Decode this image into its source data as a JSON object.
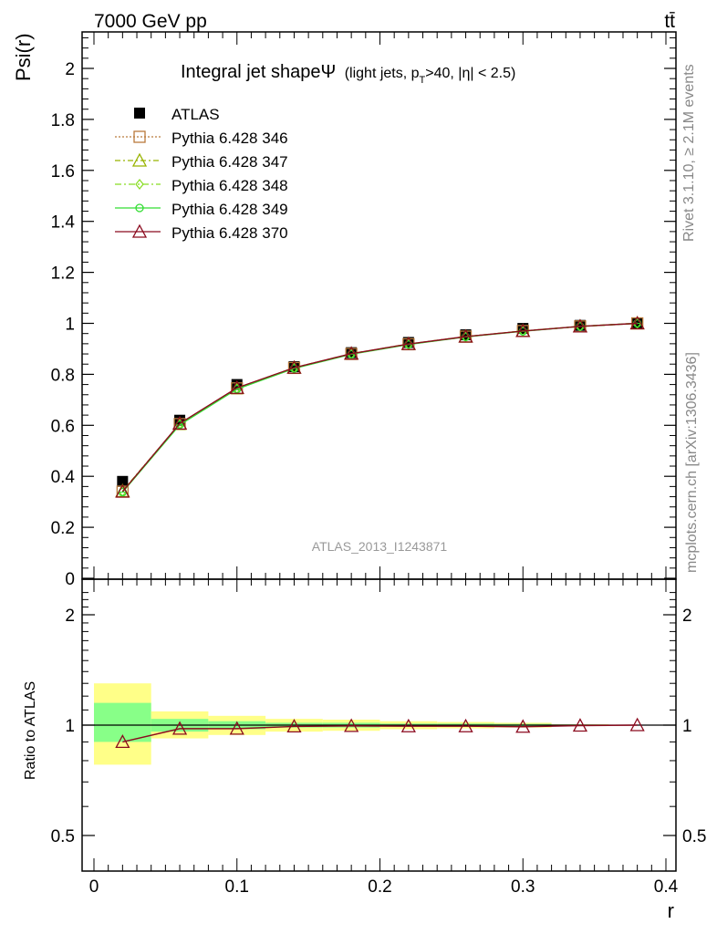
{
  "header": {
    "energy_label": "7000 GeV pp",
    "process_label": "tt̄",
    "side_label_top": "Rivet 3.1.10, ≥ 2.1M events",
    "side_label_bottom": "mcplots.cern.ch [arXiv:1306.3436]",
    "analysis_label": "ATLAS_2013_I1243871"
  },
  "chart_data": [
    {
      "type": "line",
      "title": "Integral jet shapeΨ",
      "title_suffix": "(light jets, p",
      "title_sub": "T",
      "title_tail": ">40, |η| < 2.5)",
      "xlabel": "",
      "ylabel": "Psi(r)",
      "xlim": [
        0.0,
        0.4
      ],
      "ylim": [
        0.0,
        2.15
      ],
      "yticks": [
        0,
        0.2,
        0.4,
        0.6,
        0.8,
        1,
        1.2,
        1.4,
        1.6,
        1.8,
        2
      ],
      "ytick_labels": [
        "0",
        "0.2",
        "0.4",
        "0.6",
        "0.8",
        "1",
        "1.2",
        "1.4",
        "1.6",
        "1.8",
        "2"
      ],
      "x": [
        0.02,
        0.06,
        0.1,
        0.14,
        0.18,
        0.22,
        0.26,
        0.3,
        0.34,
        0.38
      ],
      "data": {
        "name": "ATLAS",
        "values": [
          0.38,
          0.62,
          0.76,
          0.83,
          0.885,
          0.925,
          0.955,
          0.98,
          0.992,
          1.0
        ]
      },
      "series": [
        {
          "name": "Pythia 6.428 346",
          "color": "#b97a3c",
          "dash": "2,2",
          "marker": "square",
          "values": [
            0.34,
            0.605,
            0.745,
            0.825,
            0.88,
            0.918,
            0.948,
            0.97,
            0.988,
            1.0
          ]
        },
        {
          "name": "Pythia 6.428 347",
          "color": "#99b300",
          "dash": "6,3,2,3",
          "marker": "triangle",
          "values": [
            0.342,
            0.606,
            0.746,
            0.826,
            0.881,
            0.919,
            0.948,
            0.97,
            0.988,
            1.0
          ]
        },
        {
          "name": "Pythia 6.428 348",
          "color": "#88dd22",
          "dash": "7,3,2,3",
          "marker": "diamond",
          "values": [
            0.341,
            0.605,
            0.744,
            0.825,
            0.88,
            0.918,
            0.947,
            0.97,
            0.988,
            1.0
          ]
        },
        {
          "name": "Pythia 6.428 349",
          "color": "#33dd33",
          "dash": "",
          "marker": "circle",
          "values": [
            0.338,
            0.602,
            0.742,
            0.823,
            0.879,
            0.917,
            0.947,
            0.969,
            0.988,
            1.0
          ]
        },
        {
          "name": "Pythia 6.428 370",
          "color": "#8b0a1e",
          "dash": "",
          "marker": "triangle",
          "values": [
            0.34,
            0.607,
            0.747,
            0.826,
            0.881,
            0.919,
            0.948,
            0.97,
            0.988,
            1.0
          ]
        }
      ],
      "legend_position": "top-left"
    },
    {
      "type": "line",
      "title": "",
      "xlabel": "r",
      "ylabel": "Ratio to ATLAS",
      "xlim": [
        -0.01,
        0.4
      ],
      "xticks": [
        0,
        0.1,
        0.2,
        0.3,
        0.4
      ],
      "xtick_labels": [
        "0",
        "0.1",
        "0.2",
        "0.3",
        "0.4"
      ],
      "ylim": [
        0.4,
        2.35
      ],
      "scale": "log",
      "yticks": [
        0.5,
        1,
        2
      ],
      "ytick_labels": [
        "0.5",
        "1",
        "2"
      ],
      "bins": [
        [
          0.0,
          0.04
        ],
        [
          0.04,
          0.08
        ],
        [
          0.08,
          0.12
        ],
        [
          0.12,
          0.16
        ],
        [
          0.16,
          0.2
        ],
        [
          0.2,
          0.24
        ],
        [
          0.24,
          0.28
        ],
        [
          0.28,
          0.32
        ],
        [
          0.32,
          0.36
        ],
        [
          0.36,
          0.4
        ]
      ],
      "band_yellow": [
        [
          0.78,
          1.3
        ],
        [
          0.92,
          1.09
        ],
        [
          0.94,
          1.06
        ],
        [
          0.96,
          1.04
        ],
        [
          0.965,
          1.035
        ],
        [
          0.975,
          1.025
        ],
        [
          0.98,
          1.02
        ],
        [
          0.985,
          1.015
        ],
        [
          0.995,
          1.005
        ],
        [
          0.998,
          1.002
        ]
      ],
      "band_green": [
        [
          0.9,
          1.15
        ],
        [
          0.96,
          1.04
        ],
        [
          0.975,
          1.025
        ],
        [
          0.985,
          1.015
        ],
        [
          0.985,
          1.015
        ],
        [
          0.99,
          1.01
        ],
        [
          0.99,
          1.01
        ],
        [
          0.992,
          1.008
        ],
        [
          0.997,
          1.003
        ],
        [
          0.999,
          1.001
        ]
      ],
      "ratio_values": [
        0.9,
        0.978,
        0.978,
        0.992,
        0.995,
        0.993,
        0.993,
        0.99,
        0.997,
        1.0
      ]
    }
  ]
}
